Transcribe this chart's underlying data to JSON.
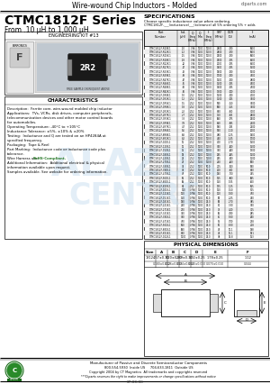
{
  "title_top": "Wire-wound Chip Inductors - Molded",
  "website": "ctparts.com",
  "series_title": "CTMC1812F Series",
  "series_subtitle": "From .10 μH to 1,000 μH",
  "eng_kit": "ENGINEERING KIT #13",
  "char_title": "CHARACTERISTICS",
  "char_lines": [
    "Description:  Ferrite core, wire-wound molded chip inductor",
    "Applications:  TVs, VCRs, disk drives, computer peripherals,",
    "telecommunication devices and other motor control boards",
    "for automobiles.",
    "Operating Temperature: -40°C to +105°C",
    "Inductance Tolerance: ±5%, ±10% & ±20%",
    "Testing:  Inductance and Q are tested on an HP4284A at",
    "specified frequency.",
    "Packaging:  Tape & Reel",
    "Part Marking:  Inductance code or inductance code plus",
    "tolerance.",
    "Wire Harness use: |RoHS-Compliant.|",
    "Additional Information:  Additional electrical & physical",
    "information available upon request.",
    "Samples available. See website for ordering information."
  ],
  "spec_title": "SPECIFICATIONS",
  "spec_sub": "Choose specific inductance value when ordering.",
  "spec_sub2": "CTMC1812F-___(inductance)___(tolerance) all 5% ordering 5% + adds",
  "phys_dim_title": "PHYSICAL DIMENSIONS",
  "doc_num": "07-00-08",
  "footer_line1": "Manufacturer of Passive and Discrete Semiconductor Components",
  "footer_line2": "800-554-5930  Inside US     704-633-1811  Outside US",
  "footer_line3": "Copyright 2004 by CT Magnetics  All trademarks and copyrights reserved",
  "footer_line4": "***Ctparts reserves the right to make improvements or change specifications without notice",
  "bg_color": "#ffffff",
  "green_color": "#2a7a2a",
  "table_headers": [
    "Part\nNumber",
    "Inductance\n(μH)",
    "Q\nTest\nFreq\n(MHz)",
    "Q\nMin",
    "Ir Test\nFreq.\n(MHz)",
    "SRF\nMin.\n(MHz)",
    "DCIR\nMax.\n(Ω)",
    "Rated\nCur\n(mA)"
  ],
  "table_data": [
    [
      "CTMC1812F-R10K-1",
      ".10",
      "7.96",
      "1000",
      "100.0",
      "2800",
      ".020",
      "6900"
    ],
    [
      "CTMC1812F-R12K-1",
      ".12",
      "7.96",
      "1000",
      "100.0",
      "2800",
      ".020",
      "6900"
    ],
    [
      "CTMC1812F-R15K-1",
      ".15",
      "7.96",
      "1000",
      "100.0",
      "2500",
      ".020",
      "6900"
    ],
    [
      "CTMC1812F-R18K-1",
      ".18",
      "7.96",
      "1000",
      "100.0",
      "2500",
      ".025",
      "6300"
    ],
    [
      "CTMC1812F-R22K-1",
      ".22",
      "7.96",
      "1000",
      "100.0",
      "2000",
      ".025",
      "6300"
    ],
    [
      "CTMC1812F-R27K-1",
      ".27",
      "7.96",
      "1000",
      "100.0",
      "1900",
      ".025",
      "5500"
    ],
    [
      "CTMC1812F-R33K-1",
      ".33",
      "7.96",
      "1000",
      "100.0",
      "1800",
      ".030",
      "5200"
    ],
    [
      "CTMC1812F-R39K-1",
      ".39",
      "7.96",
      "1000",
      "100.0",
      "1700",
      ".030",
      "4900"
    ],
    [
      "CTMC1812F-R47K-1",
      ".47",
      "7.96",
      "1000",
      "100.0",
      "1600",
      ".030",
      "4800"
    ],
    [
      "CTMC1812F-R56K-1",
      ".56",
      "7.96",
      "1000",
      "100.0",
      "1500",
      ".035",
      "4600"
    ],
    [
      "CTMC1812F-R68K-1",
      ".68",
      "7.96",
      "1000",
      "100.0",
      "1400",
      ".035",
      "4300"
    ],
    [
      "CTMC1812F-R82K-1",
      ".82",
      "7.96",
      "1000",
      "100.0",
      "1300",
      ".040",
      "4100"
    ],
    [
      "CTMC1812F-1R0K-1",
      "1.0",
      "2.52",
      "1000",
      "100.0",
      "1200",
      ".040",
      "4000"
    ],
    [
      "CTMC1812F-1R2K-1",
      "1.2",
      "2.52",
      "1000",
      "100.0",
      "1100",
      ".045",
      "3700"
    ],
    [
      "CTMC1812F-1R5K-1",
      "1.5",
      "2.52",
      "1000",
      "100.0",
      "990",
      ".050",
      "3500"
    ],
    [
      "CTMC1812F-1R8K-1",
      "1.8",
      "2.52",
      "1000",
      "100.0",
      "900",
      ".055",
      "3200"
    ],
    [
      "CTMC1812F-2R2K-1",
      "2.2",
      "2.52",
      "1000",
      "100.0",
      "820",
      ".060",
      "3000"
    ],
    [
      "CTMC1812F-2R7K-1",
      "2.7",
      "2.52",
      "1000",
      "100.0",
      "750",
      ".065",
      "2800"
    ],
    [
      "CTMC1812F-3R3K-1",
      "3.3",
      "2.52",
      "1000",
      "100.0",
      "680",
      ".075",
      "2500"
    ],
    [
      "CTMC1812F-3R9K-1",
      "3.9",
      "2.52",
      "1000",
      "100.0",
      "630",
      ".085",
      "2400"
    ],
    [
      "CTMC1812F-4R7K-1",
      "4.7",
      "2.52",
      "1000",
      "100.0",
      "580",
      ".095",
      "2200"
    ],
    [
      "CTMC1812F-5R6K-1",
      "5.6",
      "2.52",
      "1000",
      "100.0",
      "530",
      ".110",
      "2000"
    ],
    [
      "CTMC1812F-6R8K-1",
      "6.8",
      "2.52",
      "1000",
      "100.0",
      "480",
      ".125",
      "1900"
    ],
    [
      "CTMC1812F-8R2K-1",
      "8.2",
      "2.52",
      "1000",
      "100.0",
      "440",
      ".145",
      "1700"
    ],
    [
      "CTMC1812F-100K-1",
      "10",
      "2.52",
      "1000",
      "100.0",
      "400",
      ".170",
      "1600"
    ],
    [
      "CTMC1812F-120K-1",
      "12",
      "2.52",
      "1000",
      "100.0",
      "360",
      ".200",
      "1500"
    ],
    [
      "CTMC1812F-150K-1",
      "15",
      "2.52",
      "1000",
      "100.0",
      "320",
      ".240",
      "1300"
    ],
    [
      "CTMC1812F-180K-1",
      "18",
      "2.52",
      "1000",
      "100.0",
      "295",
      ".285",
      "1200"
    ],
    [
      "CTMC1812F-220K-1",
      "22",
      "2.52",
      "1000",
      "100.0",
      "265",
      ".340",
      "1100"
    ],
    [
      "CTMC1812F-270K-1",
      "27",
      "2.52",
      "1000",
      "100.0",
      "240",
      ".420",
      "980"
    ],
    [
      "CTMC1812F-330K-1",
      "33",
      "2.52",
      "1000",
      "50.0",
      "215",
      ".510",
      "890"
    ],
    [
      "CTMC1812F-390K-1",
      "39",
      "2.52",
      "1000",
      "50.0",
      "200",
      ".600",
      "820"
    ],
    [
      "CTMC1812F-470K-1",
      "47",
      "2.52",
      "1000",
      "50.0",
      "180",
      ".720",
      "745"
    ],
    [
      "CTMC1812F-560K-1",
      "56",
      "2.52",
      "1000",
      "50.0",
      "165",
      ".860",
      "685"
    ],
    [
      "CTMC1812F-680K-1",
      "68",
      "2.52",
      "1000",
      "50.0",
      "150",
      "1.05",
      "620"
    ],
    [
      "CTMC1812F-820K-1",
      "82",
      "2.52",
      "1000",
      "50.0",
      "135",
      "1.25",
      "565"
    ],
    [
      "CTMC1812F-101K-1",
      "100",
      "0.796",
      "1000",
      "50.0",
      "120",
      "1.50",
      "515"
    ],
    [
      "CTMC1812F-121K-1",
      "120",
      "0.796",
      "1000",
      "50.0",
      "110",
      "1.80",
      "470"
    ],
    [
      "CTMC1812F-151K-1",
      "150",
      "0.796",
      "1000",
      "50.0",
      "98",
      "2.25",
      "420"
    ],
    [
      "CTMC1812F-181K-1",
      "180",
      "0.796",
      "1000",
      "25.0",
      "90",
      "2.70",
      "385"
    ],
    [
      "CTMC1812F-221K-1",
      "220",
      "0.796",
      "1000",
      "25.0",
      "81",
      "3.30",
      "350"
    ],
    [
      "CTMC1812F-271K-1",
      "270",
      "0.796",
      "1000",
      "25.0",
      "73",
      "4.00",
      "315"
    ],
    [
      "CTMC1812F-331K-1",
      "330",
      "0.796",
      "1000",
      "25.0",
      "66",
      "4.90",
      "285"
    ],
    [
      "CTMC1812F-391K-1",
      "390",
      "0.796",
      "1000",
      "25.0",
      "61",
      "5.80",
      "260"
    ],
    [
      "CTMC1812F-471K-1",
      "470",
      "0.796",
      "1000",
      "25.0",
      "55",
      "7.00",
      "238"
    ],
    [
      "CTMC1812F-561K-1",
      "560",
      "0.796",
      "1000",
      "25.0",
      "50",
      "8.30",
      "218"
    ],
    [
      "CTMC1812F-681K-1",
      "680",
      "0.796",
      "1000",
      "25.0",
      "46",
      "10.1",
      "198"
    ],
    [
      "CTMC1812F-821K-1",
      "820",
      "0.796",
      "1000",
      "25.0",
      "42",
      "12.1",
      "181"
    ],
    [
      "CTMC1812F-102K-1",
      "1000",
      "0.796",
      "1000",
      "25.0",
      "38",
      "14.8",
      "163"
    ]
  ],
  "watermark_lines": [
    "ALAZUR",
    "CENTRE"
  ],
  "watermark_color": "#c8dff0"
}
